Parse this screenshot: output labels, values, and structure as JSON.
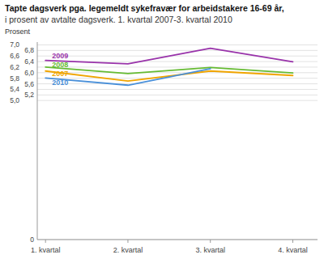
{
  "chart_data": {
    "type": "line",
    "title": "Tapte dagsverk pga. legemeldt sykefravær for arbeidstakere 16-69 år,",
    "subtitle": "i prosent av avtalte dagsverk. 1. kvartal 2007-3. kvartal 2010",
    "y_label": "Prosent",
    "categories": [
      "1. kvartal",
      "2. kvartal",
      "3. kvartal",
      "4. kvartal"
    ],
    "series": [
      {
        "name": "2009",
        "color": "#9933aa",
        "values": [
          6.44,
          6.32,
          6.88,
          6.39
        ]
      },
      {
        "name": "2008",
        "color": "#66bb33",
        "values": [
          6.2,
          5.97,
          6.19,
          5.99
        ]
      },
      {
        "name": "2007",
        "color": "#f0a500",
        "values": [
          6.06,
          5.7,
          6.06,
          5.9
        ]
      },
      {
        "name": "2010",
        "color": "#4a90d9",
        "values": [
          5.81,
          5.55,
          6.14,
          null
        ]
      }
    ],
    "ylim": [
      0,
      7.1
    ],
    "yticks": [
      0,
      {
        "value": 5.0,
        "label": "5,0"
      },
      {
        "value": 5.2,
        "label": "5,2"
      },
      {
        "value": 5.4,
        "label": "5,4"
      },
      {
        "value": 5.6,
        "label": "5,6"
      },
      {
        "value": 5.8,
        "label": "5,8"
      },
      {
        "value": 6.0,
        "label": "6,0"
      },
      {
        "value": 6.2,
        "label": "6,2"
      },
      {
        "value": 6.4,
        "label": "6,4"
      },
      {
        "value": 6.6,
        "label": "6,6"
      },
      {
        "value": 6.8,
        "label": "6,8"
      },
      {
        "value": 7.0,
        "label": "7,0"
      }
    ],
    "grid": true
  }
}
